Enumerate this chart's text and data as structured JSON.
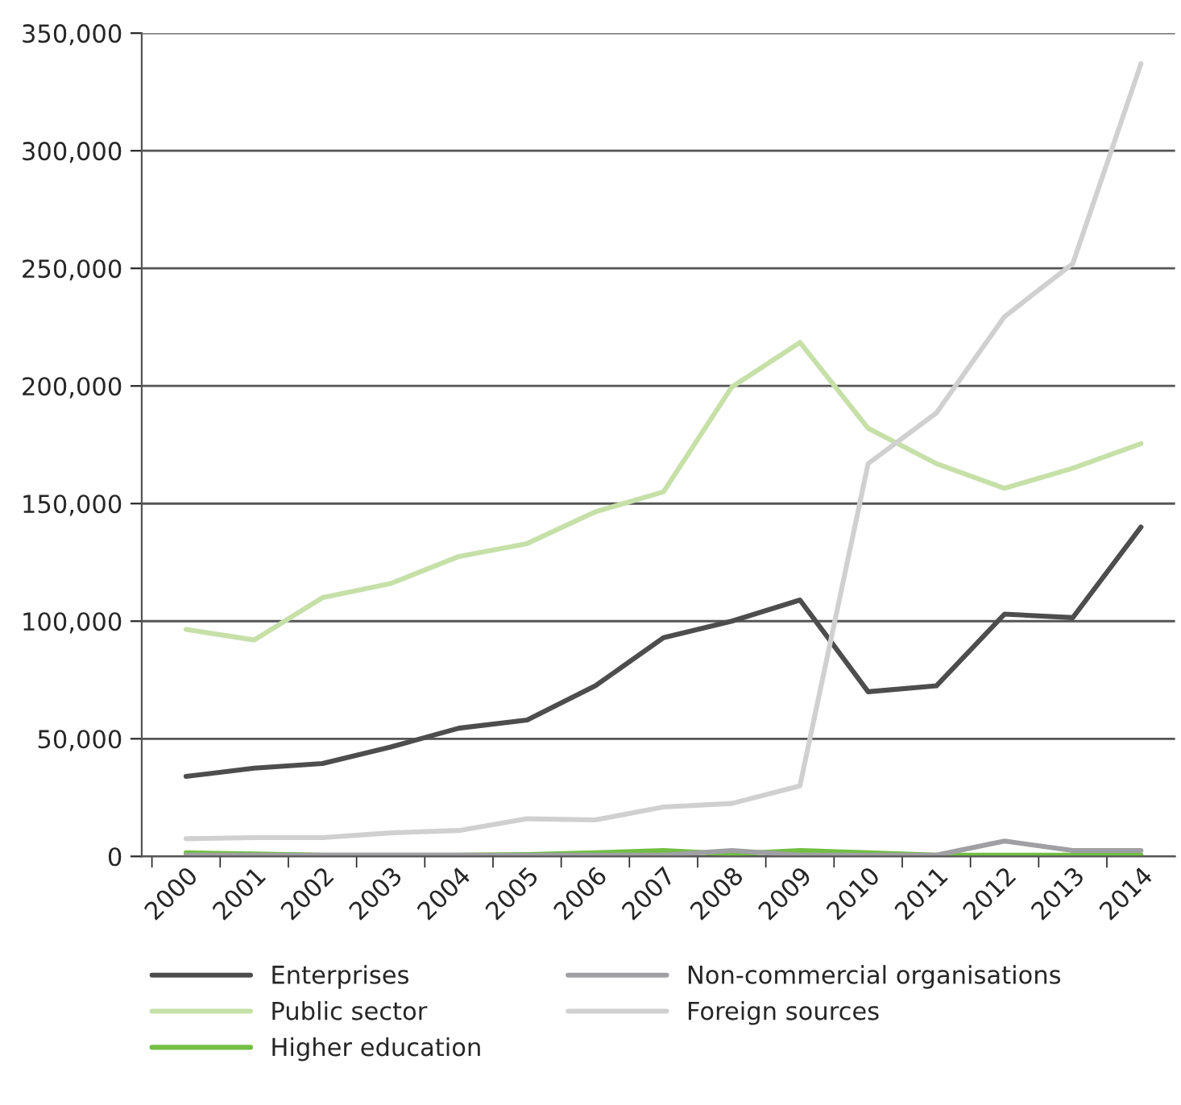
{
  "chart_data": {
    "type": "line",
    "categories": [
      "2000",
      "2001",
      "2002",
      "2003",
      "2004",
      "2005",
      "2006",
      "2007",
      "2008",
      "2009",
      "2010",
      "2011",
      "2012",
      "2013",
      "2014"
    ],
    "series": [
      {
        "name": "Enterprises",
        "color": "#4d4d4d",
        "values": [
          34000,
          37500,
          39500,
          46500,
          54500,
          58000,
          72500,
          93000,
          100000,
          109000,
          70000,
          72500,
          103000,
          101500,
          140000
        ]
      },
      {
        "name": "Public sector",
        "color": "#c6e0a8",
        "values": [
          96500,
          92000,
          110000,
          116000,
          127500,
          133000,
          146500,
          155000,
          199500,
          218500,
          182000,
          167000,
          156500,
          165000,
          175500
        ]
      },
      {
        "name": "Higher education",
        "color": "#72bf44",
        "values": [
          1500,
          1000,
          500,
          500,
          500,
          800,
          1500,
          2500,
          1000,
          2500,
          1500,
          500,
          500,
          500,
          500
        ]
      },
      {
        "name": "Non-commercial organisations",
        "color": "#a0a0a4",
        "values": [
          500,
          500,
          500,
          500,
          500,
          500,
          500,
          500,
          2500,
          500,
          500,
          500,
          6500,
          2500,
          2500
        ]
      },
      {
        "name": "Foreign sources",
        "color": "#d0d0d0",
        "values": [
          7500,
          8000,
          8000,
          10000,
          11000,
          16000,
          15500,
          21000,
          22500,
          30000,
          167000,
          188500,
          229500,
          252000,
          337000
        ]
      }
    ],
    "ylim": [
      0,
      350000
    ],
    "yticks": [
      {
        "value": 0,
        "label": "0"
      },
      {
        "value": 50000,
        "label": "50,000"
      },
      {
        "value": 100000,
        "label": "100,000"
      },
      {
        "value": 150000,
        "label": "150,000"
      },
      {
        "value": 200000,
        "label": "200,000"
      },
      {
        "value": 250000,
        "label": "250,000"
      },
      {
        "value": 300000,
        "label": "300,000"
      },
      {
        "value": 350000,
        "label": "350,000"
      }
    ],
    "grid": "y",
    "legend": "bottom",
    "marker": "none",
    "line_style": "solid"
  }
}
